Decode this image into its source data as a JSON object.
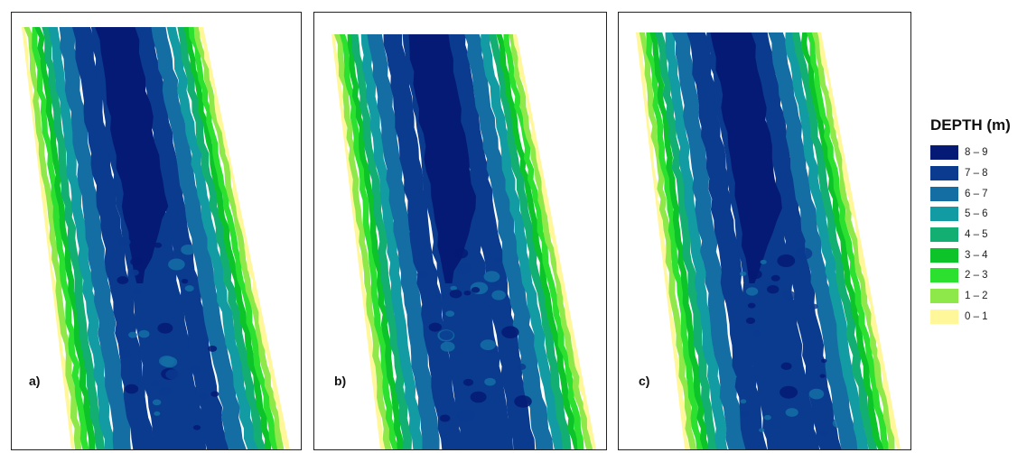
{
  "panels": [
    {
      "label": "a)"
    },
    {
      "label": "b)"
    },
    {
      "label": "c)"
    }
  ],
  "legend": {
    "title": "DEPTH (m)",
    "items": [
      {
        "label": "8 – 9",
        "color": "#051a74"
      },
      {
        "label": "7 – 8",
        "color": "#0a3b8f"
      },
      {
        "label": "6 – 7",
        "color": "#146ea4"
      },
      {
        "label": "5 – 6",
        "color": "#129ba2"
      },
      {
        "label": "4 – 5",
        "color": "#12ae72"
      },
      {
        "label": "3 – 4",
        "color": "#0cc42a"
      },
      {
        "label": "2 – 3",
        "color": "#2be02f"
      },
      {
        "label": "1 – 2",
        "color": "#8fe84a"
      },
      {
        "label": "0 – 1",
        "color": "#fff79a"
      }
    ]
  }
}
